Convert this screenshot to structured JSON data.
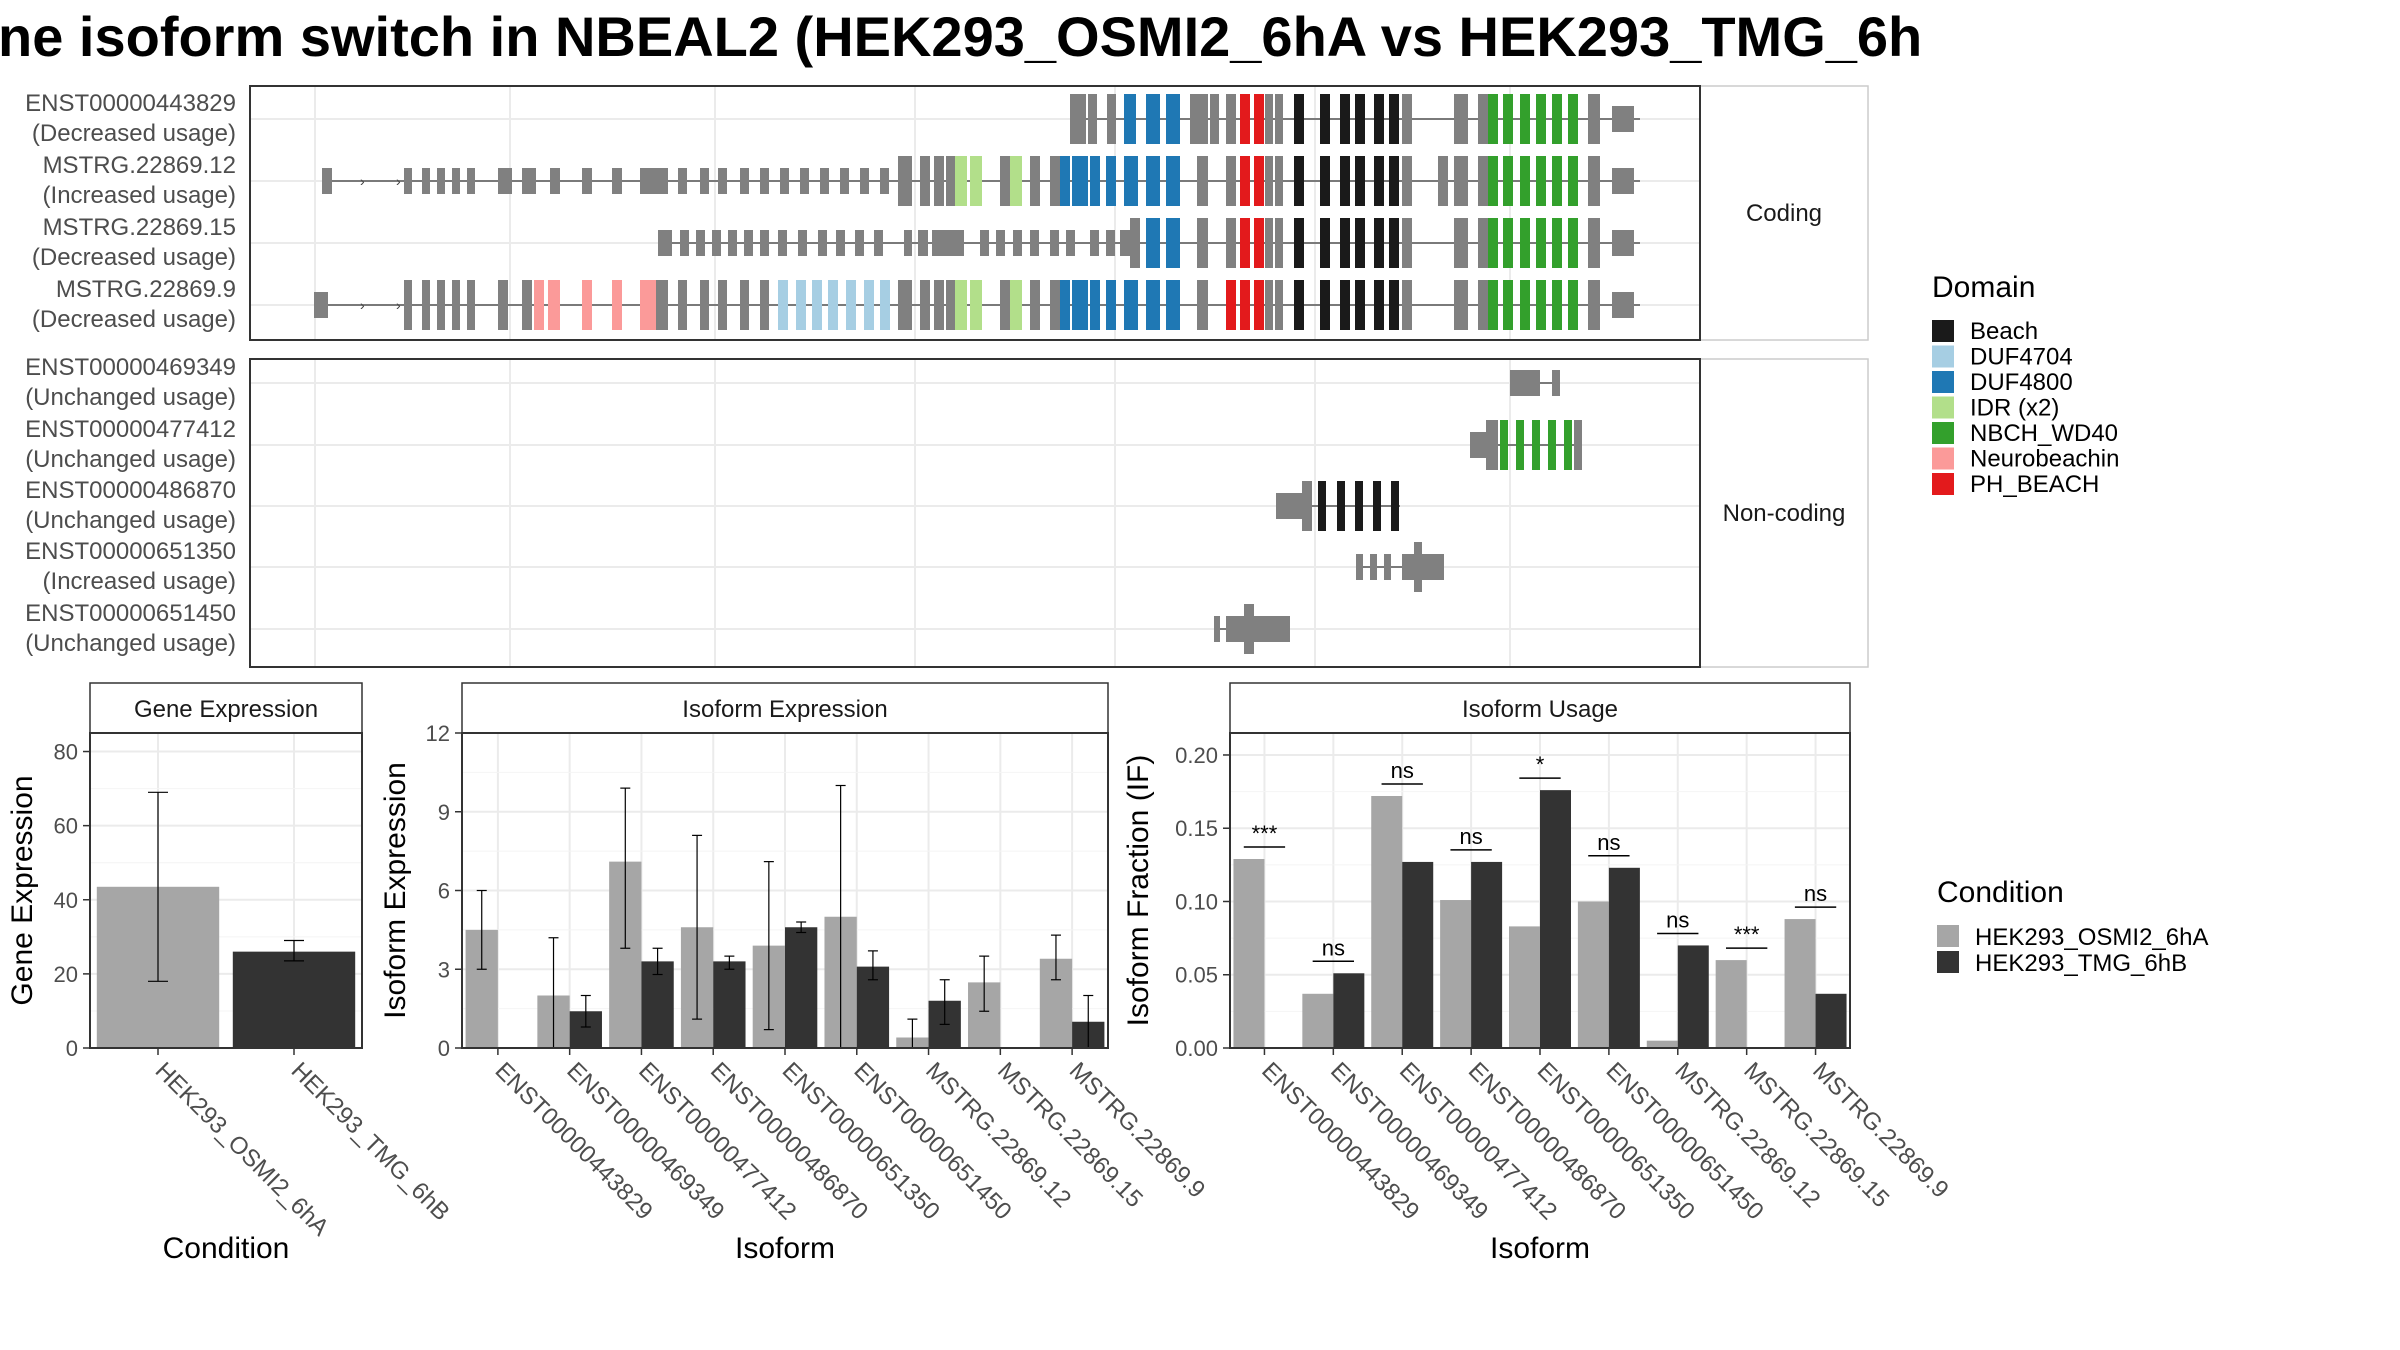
{
  "title": "ne isoform switch in NBEAL2 (HEK293_OSMI2_6hA vs HEK293_TMG_6h",
  "colors": {
    "cond_a": "#a6a6a6",
    "cond_b": "#333333",
    "grey_exon": "#808080",
    "domains": {
      "Beach": "#1a1a1a",
      "DUF4704": "#a6cee3",
      "DUF4800": "#1f78b4",
      "IDR (x2)": "#b2df8a",
      "NBCH_WD40": "#33a02c",
      "Neurobeachin": "#fb9a99",
      "PH_BEACH": "#e31a1c"
    }
  },
  "structure": {
    "facets": [
      "Coding",
      "Non-coding"
    ],
    "coding_tracks": [
      {
        "name": "ENST00000443829",
        "usage": "(Decreased usage)"
      },
      {
        "name": "MSTRG.22869.12",
        "usage": "(Increased usage)"
      },
      {
        "name": "MSTRG.22869.15",
        "usage": "(Decreased usage)"
      },
      {
        "name": "MSTRG.22869.9",
        "usage": "(Decreased usage)"
      }
    ],
    "noncoding_tracks": [
      {
        "name": "ENST00000469349",
        "usage": "(Unchanged usage)"
      },
      {
        "name": "ENST00000477412",
        "usage": "(Unchanged usage)"
      },
      {
        "name": "ENST00000486870",
        "usage": "(Unchanged usage)"
      },
      {
        "name": "ENST00000651350",
        "usage": "(Increased usage)"
      },
      {
        "name": "ENST00000651450",
        "usage": "(Unchanged usage)"
      }
    ]
  },
  "domain_legend": {
    "title": "Domain",
    "items": [
      "Beach",
      "DUF4704",
      "DUF4800",
      "IDR (x2)",
      "NBCH_WD40",
      "Neurobeachin",
      "PH_BEACH"
    ]
  },
  "condition_legend": {
    "title": "Condition",
    "items": [
      "HEK293_OSMI2_6hA",
      "HEK293_TMG_6hB"
    ]
  },
  "chart_data": [
    {
      "type": "bar",
      "title": "Gene Expression",
      "xlabel": "Condition",
      "ylabel": "Gene Expression",
      "ylim": [
        0,
        85
      ],
      "yticks": [
        0,
        20,
        40,
        60,
        80
      ],
      "categories": [
        "HEK293_OSMI2_6hA",
        "HEK293_TMG_6hB"
      ],
      "values": [
        43.5,
        26
      ],
      "error_low": [
        18,
        23.5
      ],
      "error_high": [
        69,
        29
      ],
      "grid": true
    },
    {
      "type": "bar",
      "title": "Isoform Expression",
      "xlabel": "Isoform",
      "ylabel": "Isoform Expression",
      "ylim": [
        0,
        12
      ],
      "yticks": [
        0,
        3,
        6,
        9,
        12
      ],
      "categories": [
        "ENST00000443829",
        "ENST00000469349",
        "ENST00000477412",
        "ENST00000486870",
        "ENST00000651350",
        "ENST00000651450",
        "MSTRG.22869.12",
        "MSTRG.22869.15",
        "MSTRG.22869.9"
      ],
      "series": [
        {
          "name": "HEK293_OSMI2_6hA",
          "values": [
            4.5,
            2.0,
            7.1,
            4.6,
            3.9,
            5.0,
            0.4,
            2.5,
            3.4
          ],
          "error_low": [
            3.0,
            0.0,
            3.8,
            1.1,
            0.7,
            0.0,
            0.0,
            1.4,
            2.6
          ],
          "error_high": [
            6.0,
            4.2,
            9.9,
            8.1,
            7.1,
            10.0,
            1.1,
            3.5,
            4.3
          ]
        },
        {
          "name": "HEK293_TMG_6hB",
          "values": [
            0.0,
            1.4,
            3.3,
            3.3,
            4.6,
            3.1,
            1.8,
            0.0,
            1.0
          ],
          "error_low": [
            0.0,
            0.8,
            2.8,
            3.0,
            4.4,
            2.6,
            0.9,
            0.0,
            0.0
          ],
          "error_high": [
            0.0,
            2.0,
            3.8,
            3.5,
            4.8,
            3.7,
            2.6,
            0.0,
            2.0
          ]
        }
      ],
      "grid": true
    },
    {
      "type": "bar",
      "title": "Isoform Usage",
      "xlabel": "Isoform",
      "ylabel": "Isoform Fraction (IF)",
      "ylim": [
        0,
        0.215
      ],
      "yticks": [
        0.0,
        0.05,
        0.1,
        0.15,
        0.2
      ],
      "ytick_labels": [
        "0.00",
        "0.05",
        "0.10",
        "0.15",
        "0.20"
      ],
      "categories": [
        "ENST00000443829",
        "ENST00000469349",
        "ENST00000477412",
        "ENST00000486870",
        "ENST00000651350",
        "ENST00000651450",
        "MSTRG.22869.12",
        "MSTRG.22869.15",
        "MSTRG.22869.9"
      ],
      "series": [
        {
          "name": "HEK293_OSMI2_6hA",
          "values": [
            0.129,
            0.037,
            0.172,
            0.101,
            0.083,
            0.1,
            0.005,
            0.06,
            0.088
          ]
        },
        {
          "name": "HEK293_TMG_6hB",
          "values": [
            0.0,
            0.051,
            0.127,
            0.127,
            0.176,
            0.123,
            0.07,
            0.0,
            0.037
          ]
        }
      ],
      "significance": [
        "***",
        "ns",
        "ns",
        "ns",
        "*",
        "ns",
        "ns",
        "***",
        "ns"
      ],
      "grid": true
    }
  ]
}
